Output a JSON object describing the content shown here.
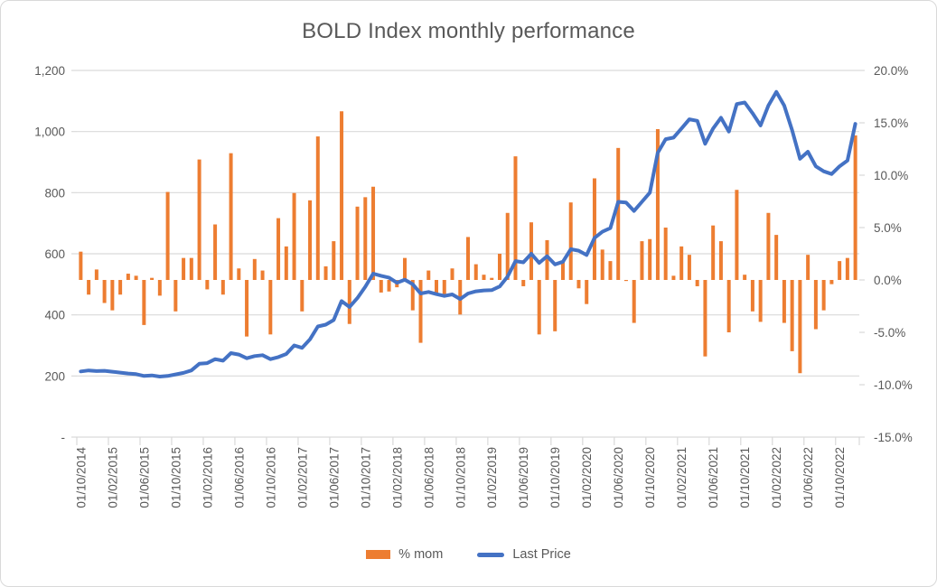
{
  "title": "BOLD Index monthly performance",
  "legend": {
    "items": [
      {
        "label": "% mom",
        "swatch": "bar-swatch",
        "color": "#ED7D31"
      },
      {
        "label": "Last Price",
        "swatch": "line-swatch",
        "color": "#4472C4"
      }
    ]
  },
  "colors": {
    "bar": "#ED7D31",
    "line": "#4472C4",
    "grid": "#D9D9D9",
    "text": "#595959",
    "background": "#FFFFFF"
  },
  "chart_data": {
    "type": "bar",
    "subtype": "combo bar + line, dual axis",
    "title": "BOLD Index monthly performance",
    "x_start": "01/10/2014",
    "x_frequency": "monthly",
    "x_tick_labels": [
      "01/10/2014",
      "01/02/2015",
      "01/06/2015",
      "01/10/2015",
      "01/02/2016",
      "01/06/2016",
      "01/10/2016",
      "01/02/2017",
      "01/06/2017",
      "01/10/2017",
      "01/02/2018",
      "01/06/2018",
      "01/10/2018",
      "01/02/2019",
      "01/06/2019",
      "01/10/2019",
      "01/02/2020",
      "01/06/2020",
      "01/10/2020",
      "01/02/2021",
      "01/06/2021",
      "01/10/2021",
      "01/02/2022",
      "01/06/2022",
      "01/10/2022"
    ],
    "left_axis": {
      "applies_to": "Last Price",
      "range": [
        0,
        1200
      ],
      "label_values_bottom_to_top": [
        "-",
        "200",
        "400",
        "600",
        "800",
        "1,000",
        "1,200"
      ]
    },
    "right_axis": {
      "applies_to": "% mom",
      "range_percent": [
        -15,
        20
      ],
      "label_values_top_to_bottom": [
        "20.0%",
        "15.0%",
        "10.0%",
        "5.0%",
        "0.0%",
        "-5.0%",
        "-10.0%",
        "-15.0%"
      ]
    },
    "grid": "horizontal only",
    "legend_position": "bottom",
    "series": [
      {
        "name": "% mom",
        "type": "bar",
        "axis": "right",
        "unit": "percent",
        "color": "#ED7D31",
        "values": [
          2.7,
          -1.4,
          1.0,
          -2.2,
          -2.9,
          -1.4,
          0.6,
          0.4,
          -4.3,
          0.2,
          -1.5,
          8.4,
          -3.0,
          2.1,
          2.1,
          11.5,
          -0.9,
          5.3,
          -1.4,
          12.1,
          1.1,
          -5.4,
          2.0,
          0.9,
          -5.2,
          5.9,
          3.2,
          8.3,
          -3.0,
          7.6,
          13.7,
          1.3,
          3.7,
          16.1,
          -4.2,
          7.0,
          7.9,
          8.9,
          -1.2,
          -1.1,
          -0.7,
          2.1,
          -2.9,
          -6.0,
          0.9,
          -1.4,
          -1.4,
          1.1,
          -3.3,
          4.1,
          1.5,
          0.5,
          0.2,
          2.5,
          6.4,
          11.8,
          -0.6,
          5.5,
          -5.2,
          3.8,
          -4.9,
          1.7,
          7.4,
          -0.8,
          -2.3,
          9.7,
          2.9,
          1.8,
          12.6,
          -0.1,
          -4.1,
          3.7,
          3.9,
          14.4,
          5.0,
          0.4,
          3.2,
          2.4,
          -0.6,
          -7.3,
          5.2,
          3.7,
          -5.0,
          8.6,
          0.5,
          -3.0,
          -4.0,
          6.4,
          4.3,
          -4.1,
          -6.8,
          -8.9,
          2.4,
          -4.7,
          -2.9,
          -0.4,
          1.8,
          2.1,
          13.8
        ]
      },
      {
        "name": "Last Price",
        "type": "line",
        "axis": "left",
        "color": "#4472C4",
        "values": [
          215,
          218,
          216,
          217,
          214,
          211,
          208,
          206,
          200,
          202,
          198,
          200,
          205,
          210,
          218,
          240,
          242,
          255,
          250,
          275,
          270,
          258,
          265,
          268,
          255,
          262,
          272,
          300,
          292,
          320,
          362,
          368,
          383,
          445,
          426,
          455,
          492,
          535,
          528,
          522,
          505,
          515,
          500,
          470,
          475,
          468,
          462,
          467,
          452,
          470,
          477,
          480,
          481,
          493,
          525,
          576,
          572,
          600,
          570,
          592,
          565,
          574,
          615,
          610,
          596,
          652,
          672,
          684,
          770,
          768,
          740,
          770,
          800,
          930,
          975,
          980,
          1010,
          1040,
          1035,
          960,
          1010,
          1045,
          1000,
          1090,
          1095,
          1060,
          1020,
          1085,
          1130,
          1085,
          1005,
          911,
          934,
          886,
          870,
          861,
          886,
          905,
          1025
        ]
      }
    ]
  }
}
